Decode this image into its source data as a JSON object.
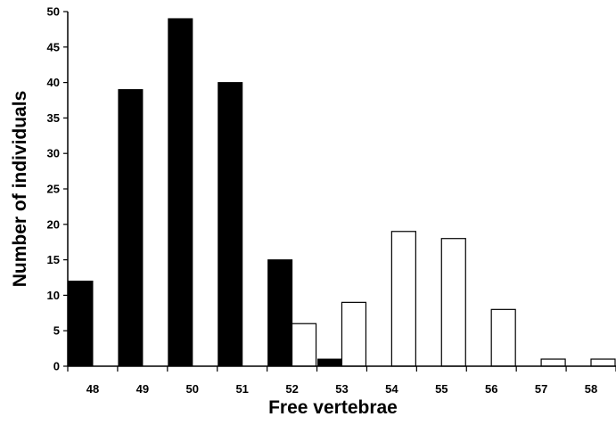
{
  "chart_data": {
    "type": "bar",
    "title": "",
    "xlabel": "Free vertebrae",
    "ylabel": "Number of individuals",
    "categories": [
      "48",
      "49",
      "50",
      "51",
      "52",
      "53",
      "54",
      "55",
      "56",
      "57",
      "58"
    ],
    "ylim": [
      0,
      50
    ],
    "yticks": [
      0,
      5,
      10,
      15,
      20,
      25,
      30,
      35,
      40,
      45,
      50
    ],
    "grid": false,
    "legend": "none",
    "series": [
      {
        "color": "#000000",
        "values": [
          12,
          39,
          49,
          40,
          15,
          1,
          0,
          0,
          0,
          0,
          0
        ]
      },
      {
        "color": "#ffffff",
        "values": [
          0,
          0,
          0,
          0,
          6,
          9,
          19,
          18,
          8,
          1,
          1
        ]
      }
    ]
  }
}
